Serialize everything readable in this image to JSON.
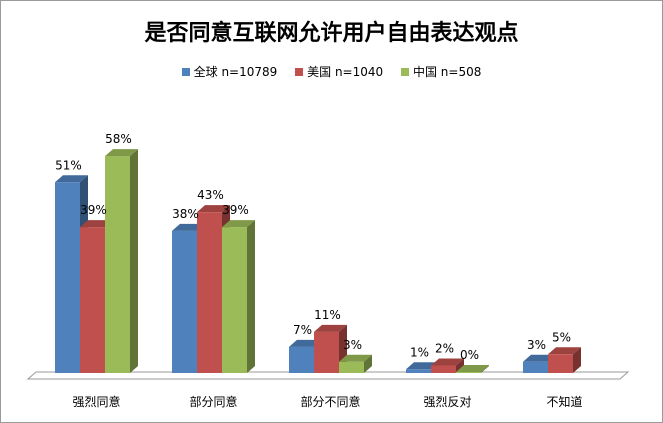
{
  "chart_data": {
    "type": "bar",
    "title": "是否同意互联网允许用户自由表达观点",
    "categories": [
      "强烈同意",
      "部分同意",
      "部分不同意",
      "强烈反对",
      "不知道"
    ],
    "series": [
      {
        "name": "全球 n=10789",
        "color": "#4f81bd",
        "values": [
          51,
          38,
          7,
          1,
          3
        ],
        "labels": [
          "51%",
          "38%",
          "7%",
          "1%",
          "3%"
        ]
      },
      {
        "name": "美国 n=1040",
        "color": "#c0504d",
        "values": [
          39,
          43,
          11,
          2,
          5
        ],
        "labels": [
          "39%",
          "43%",
          "11%",
          "2%",
          "5%"
        ]
      },
      {
        "name": "中国 n=508",
        "color": "#9bbb59",
        "values": [
          58,
          39,
          3,
          0,
          null
        ],
        "labels": [
          "58%",
          "39%",
          "3%",
          "0%",
          ""
        ]
      }
    ],
    "legend_position": "top",
    "three_d": true,
    "ylim": [
      0,
      60
    ],
    "grid": false
  }
}
